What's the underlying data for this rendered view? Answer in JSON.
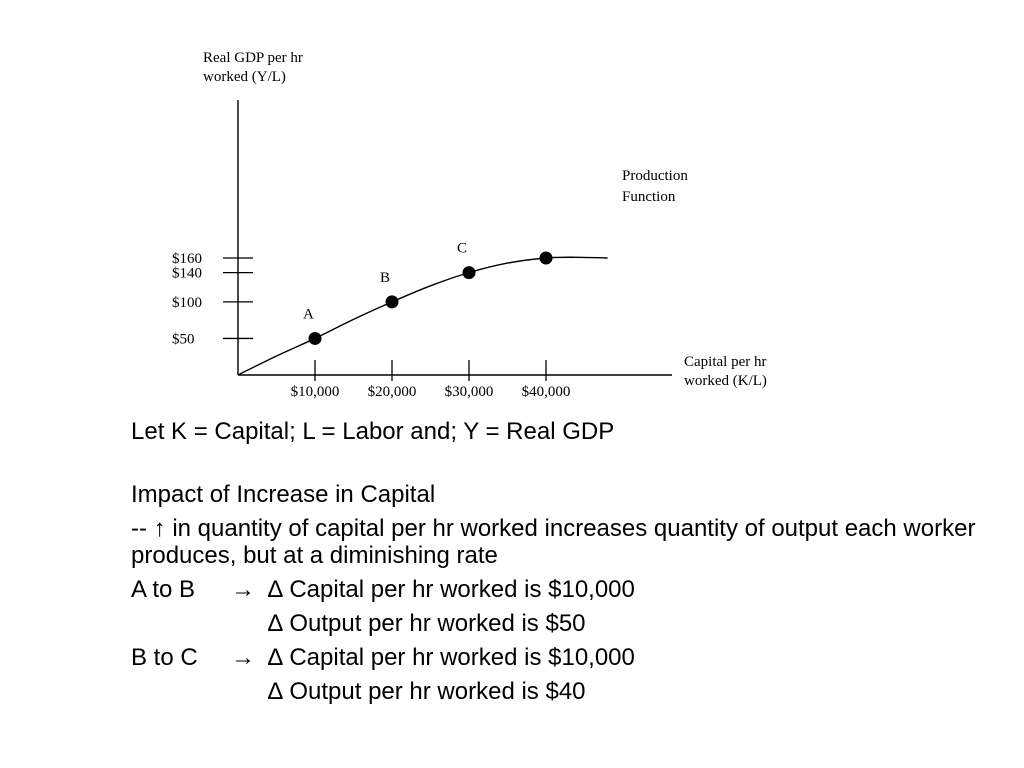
{
  "chart_data": {
    "type": "line",
    "title": "",
    "ylabel": [
      "Real GDP per hr",
      "worked (Y/L)"
    ],
    "xlabel": [
      "Capital per hr",
      "worked (K/L)"
    ],
    "series_label": [
      "Production",
      "Function"
    ],
    "x_ticks": [
      {
        "value": 10000,
        "label": "$10,000"
      },
      {
        "value": 20000,
        "label": "$20,000"
      },
      {
        "value": 30000,
        "label": "$30,000"
      },
      {
        "value": 40000,
        "label": "$40,000"
      }
    ],
    "y_ticks": [
      {
        "value": 50,
        "label": "$50"
      },
      {
        "value": 100,
        "label": "$100"
      },
      {
        "value": 140,
        "label": "$140"
      },
      {
        "value": 160,
        "label": "$160"
      }
    ],
    "points": [
      {
        "label": "A",
        "x": 10000,
        "y": 50
      },
      {
        "label": "B",
        "x": 20000,
        "y": 100
      },
      {
        "label": "C",
        "x": 30000,
        "y": 140
      },
      {
        "label": "",
        "x": 40000,
        "y": 160
      }
    ],
    "curve": [
      {
        "x": 0,
        "y": 0
      },
      {
        "x": 5000,
        "y": 26
      },
      {
        "x": 10000,
        "y": 50
      },
      {
        "x": 15000,
        "y": 76
      },
      {
        "x": 20000,
        "y": 100
      },
      {
        "x": 25000,
        "y": 122
      },
      {
        "x": 30000,
        "y": 140
      },
      {
        "x": 35000,
        "y": 153
      },
      {
        "x": 40000,
        "y": 160
      },
      {
        "x": 44000,
        "y": 161
      },
      {
        "x": 48000,
        "y": 160
      }
    ],
    "xlim": [
      0,
      57000
    ],
    "ylim": [
      0,
      240
    ],
    "grid": false,
    "legend": "none"
  },
  "text": {
    "definitions": "Let K = Capital; L = Labor and; Y = Real GDP",
    "heading": "Impact of Increase in Capital",
    "explanation": "-- ↑ in quantity of capital per hr worked increases quantity of output each worker produces, but at a diminishing rate",
    "rows": [
      {
        "label": "A to B",
        "arrow": "→",
        "text": "∆ Capital per hr worked is $10,000"
      },
      {
        "label": "",
        "arrow": "",
        "text": "∆ Output per hr worked is $50"
      },
      {
        "label": "B to C",
        "arrow": "→",
        "text": "∆ Capital per hr worked is $10,000"
      },
      {
        "label": "",
        "arrow": "",
        "text": "∆ Output per hr worked is $40"
      }
    ]
  }
}
